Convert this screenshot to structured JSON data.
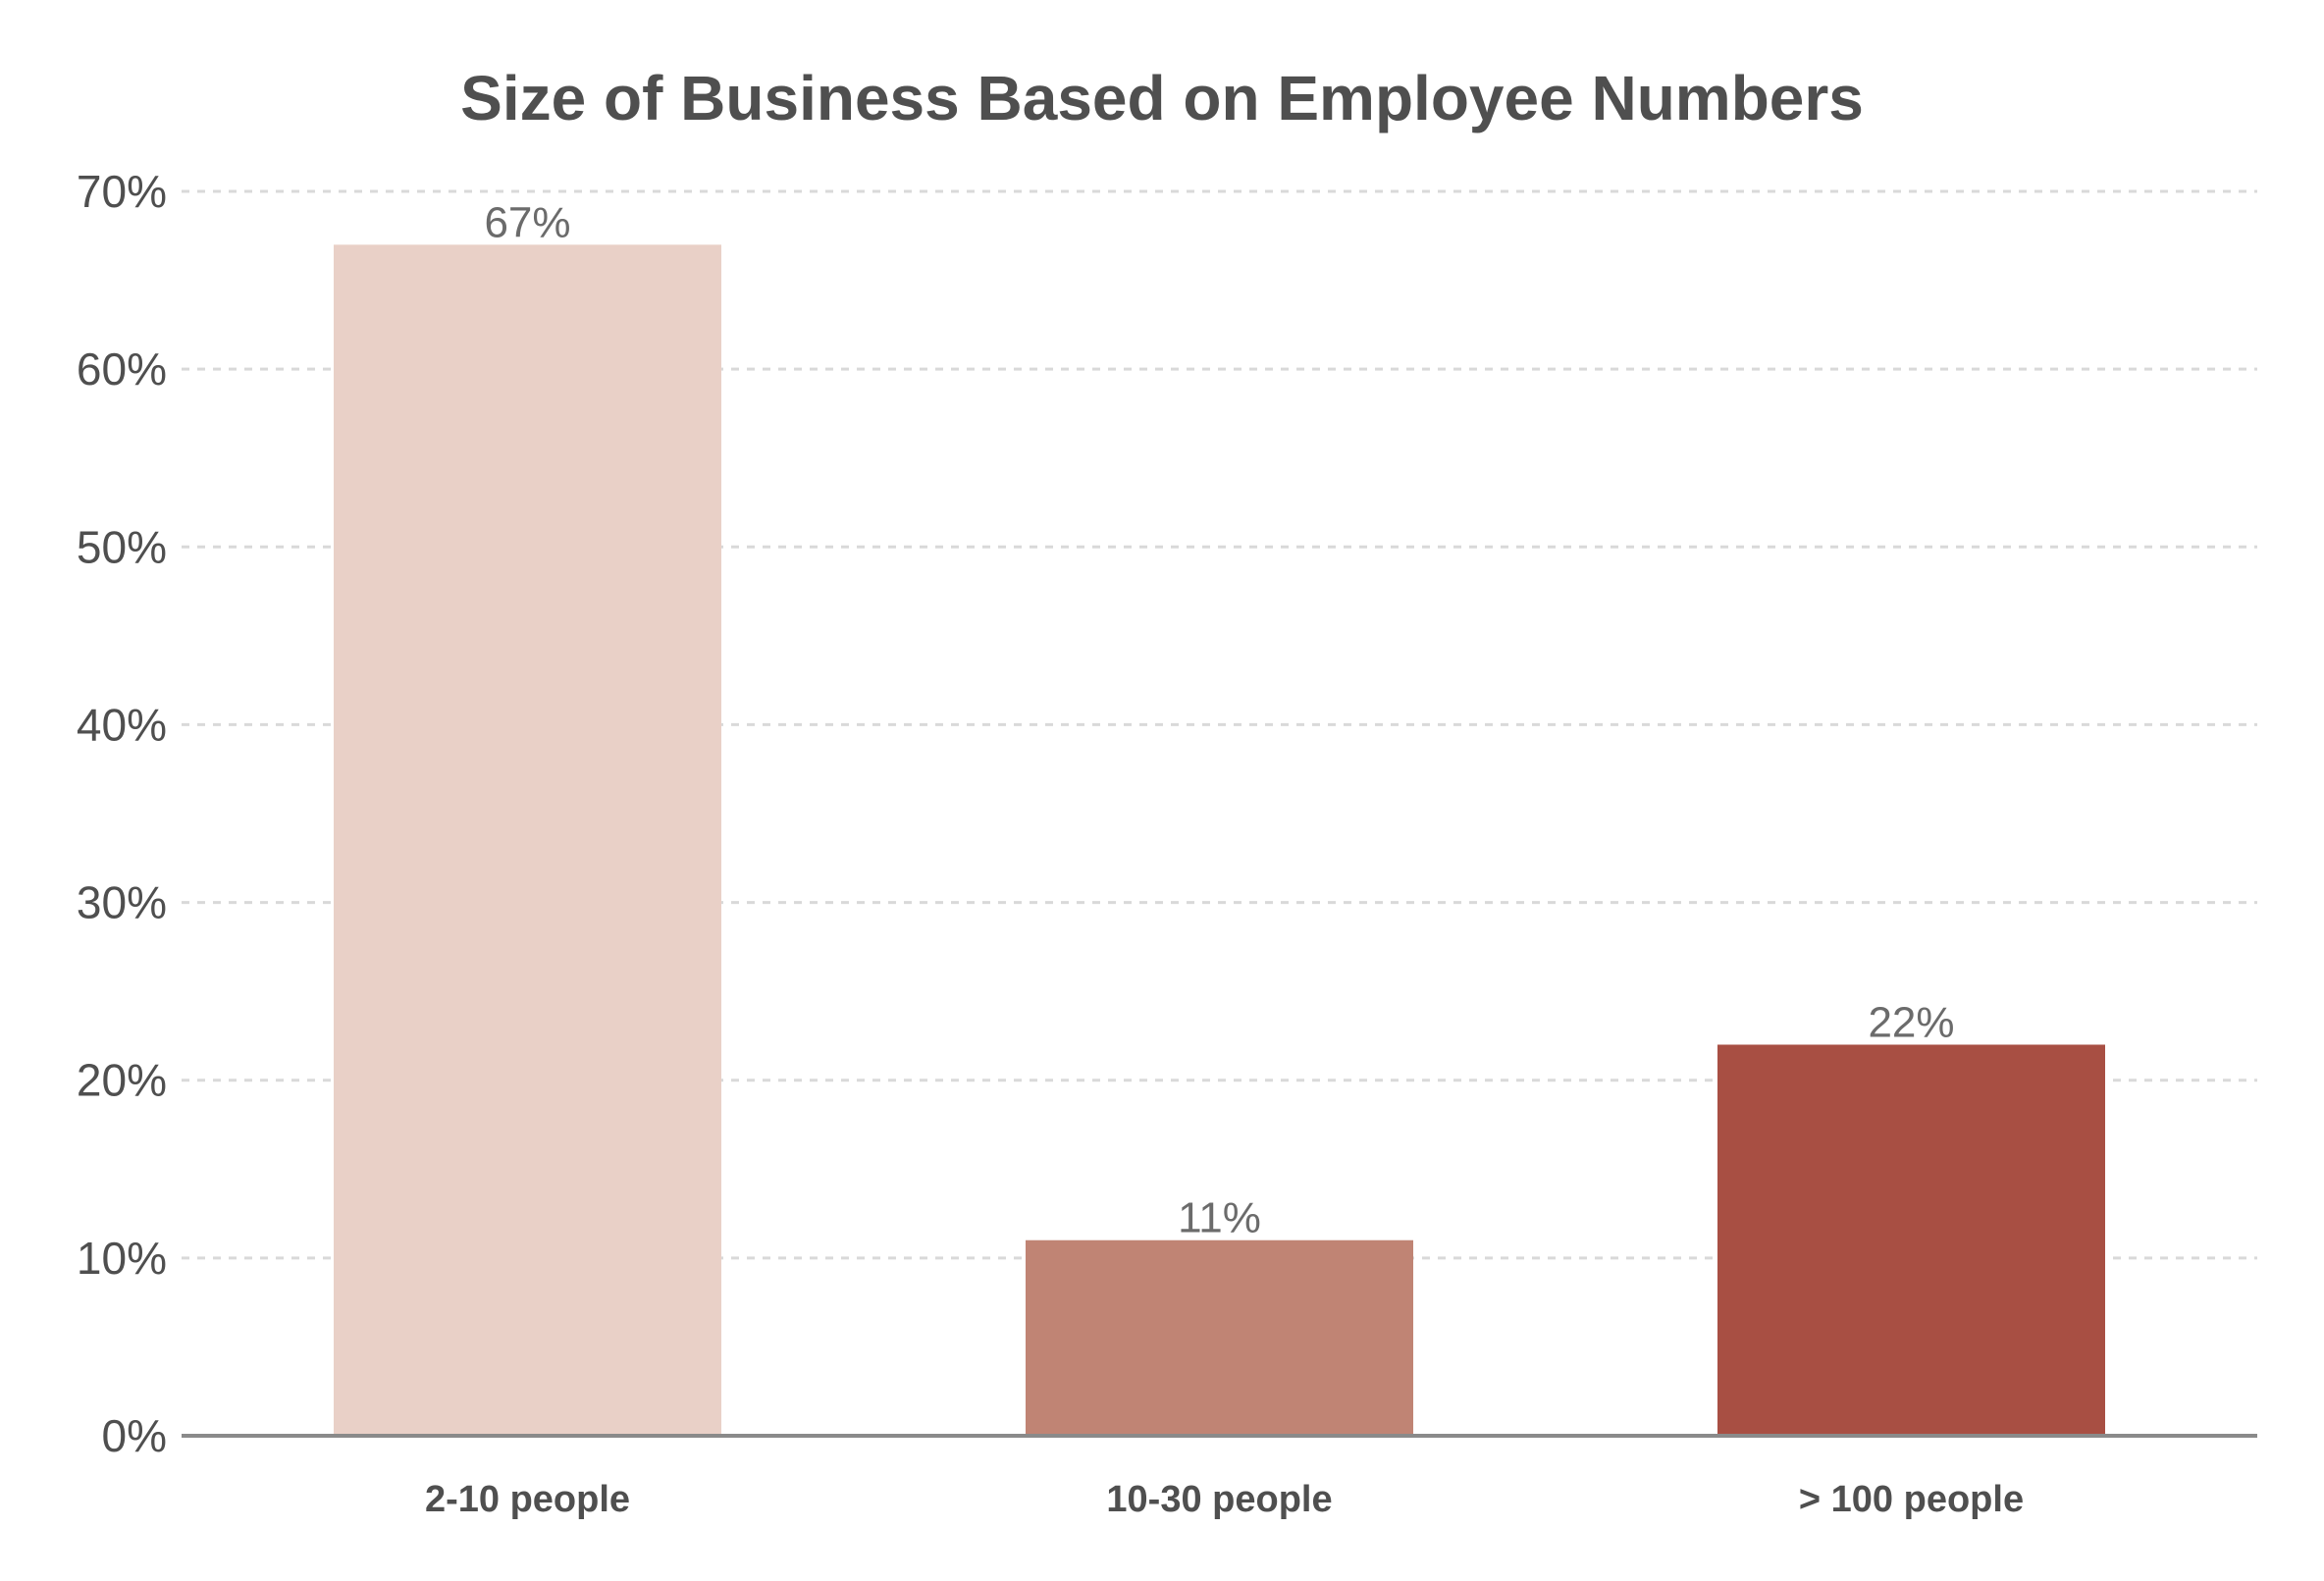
{
  "chart_data": {
    "type": "bar",
    "title": "Size of Business Based on Employee Numbers",
    "xlabel": "",
    "ylabel": "",
    "categories": [
      "2-10 people",
      "10-30 people",
      "> 100 people"
    ],
    "values": [
      67,
      11,
      22
    ],
    "data_labels": [
      "67%",
      "11%",
      "22%"
    ],
    "bar_colors": [
      "#e9d0c7",
      "#c08474",
      "#a84f43"
    ],
    "ylim": [
      0,
      70
    ],
    "yticks": [
      0,
      10,
      20,
      30,
      40,
      50,
      60,
      70
    ],
    "ytick_labels": [
      "0%",
      "10%",
      "20%",
      "30%",
      "40%",
      "50%",
      "60%",
      "70%"
    ],
    "grid": true,
    "legend": "none"
  },
  "colors": {
    "text": "#4f4f4f",
    "data_label": "#6b6b6b",
    "grid": "#d9d9d9",
    "axis": "#8a8a8a"
  }
}
